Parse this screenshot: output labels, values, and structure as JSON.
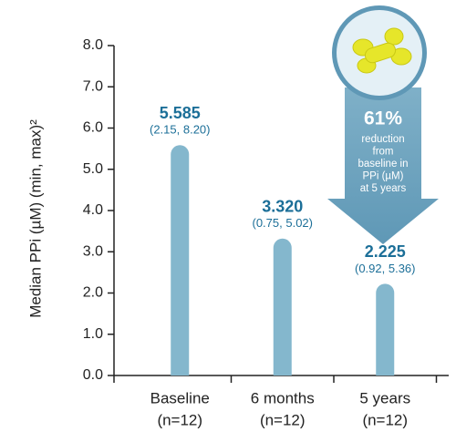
{
  "chart_data": {
    "type": "bar",
    "y_label": "Median PPi (µM) (min, max)²",
    "categories": [
      "Baseline",
      "6 months",
      "5 years"
    ],
    "category_sublabels": [
      "(n=12)",
      "(n=12)",
      "(n=12)"
    ],
    "values": [
      5.585,
      3.32,
      2.225
    ],
    "value_labels": [
      "5.585",
      "3.320",
      "2.225"
    ],
    "range_labels": [
      "(2.15, 8.20)",
      "(0.75, 5.02)",
      "(0.92, 5.36)"
    ],
    "color": "#84b7cd",
    "ylim": [
      0,
      8
    ],
    "yticks": [
      {
        "value": 0,
        "label": "0.0"
      },
      {
        "value": 1,
        "label": "1.0"
      },
      {
        "value": 2,
        "label": "2.0"
      },
      {
        "value": 3,
        "label": "3.0"
      },
      {
        "value": 4,
        "label": "4.0"
      },
      {
        "value": 5,
        "label": "5.0"
      },
      {
        "value": 6,
        "label": "6.0"
      },
      {
        "value": 7,
        "label": "7.0"
      },
      {
        "value": 8,
        "label": "8.0"
      }
    ],
    "annotation": {
      "headline": "61%",
      "lines": [
        "reduction",
        "from",
        "baseline in",
        "PPi (µM)",
        "at 5 years"
      ]
    }
  }
}
